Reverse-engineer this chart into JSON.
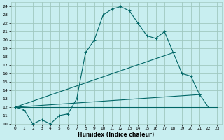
{
  "title": "",
  "xlabel": "Humidex (Indice chaleur)",
  "background_color": "#c8eef0",
  "grid_color": "#a0c8c0",
  "line_color": "#006666",
  "xlim": [
    -0.5,
    23.5
  ],
  "ylim": [
    10,
    24.5
  ],
  "xticks": [
    0,
    1,
    2,
    3,
    4,
    5,
    6,
    7,
    8,
    9,
    10,
    11,
    12,
    13,
    14,
    15,
    16,
    17,
    18,
    19,
    20,
    21,
    22,
    23
  ],
  "yticks": [
    10,
    11,
    12,
    13,
    14,
    15,
    16,
    17,
    18,
    19,
    20,
    21,
    22,
    23,
    24
  ],
  "series": [
    {
      "x": [
        0,
        1,
        2,
        3,
        4,
        5,
        6,
        7,
        8,
        9,
        10,
        11,
        12,
        13,
        14,
        15,
        16,
        17,
        18
      ],
      "y": [
        12,
        11.7,
        10,
        10.5,
        10.0,
        11.0,
        11.2,
        13.0,
        18.5,
        20.0,
        23.0,
        23.7,
        24.0,
        23.5,
        22.0,
        20.5,
        20.2,
        21.0,
        18.5
      ],
      "marker": true
    },
    {
      "x": [
        0,
        18,
        19,
        20,
        21
      ],
      "y": [
        12,
        18.5,
        16.0,
        15.7,
        13.5
      ],
      "marker": true
    },
    {
      "x": [
        0,
        21,
        22
      ],
      "y": [
        12,
        13.5,
        12.0
      ],
      "marker": true
    },
    {
      "x": [
        0,
        23
      ],
      "y": [
        12,
        12
      ],
      "marker": false
    }
  ]
}
